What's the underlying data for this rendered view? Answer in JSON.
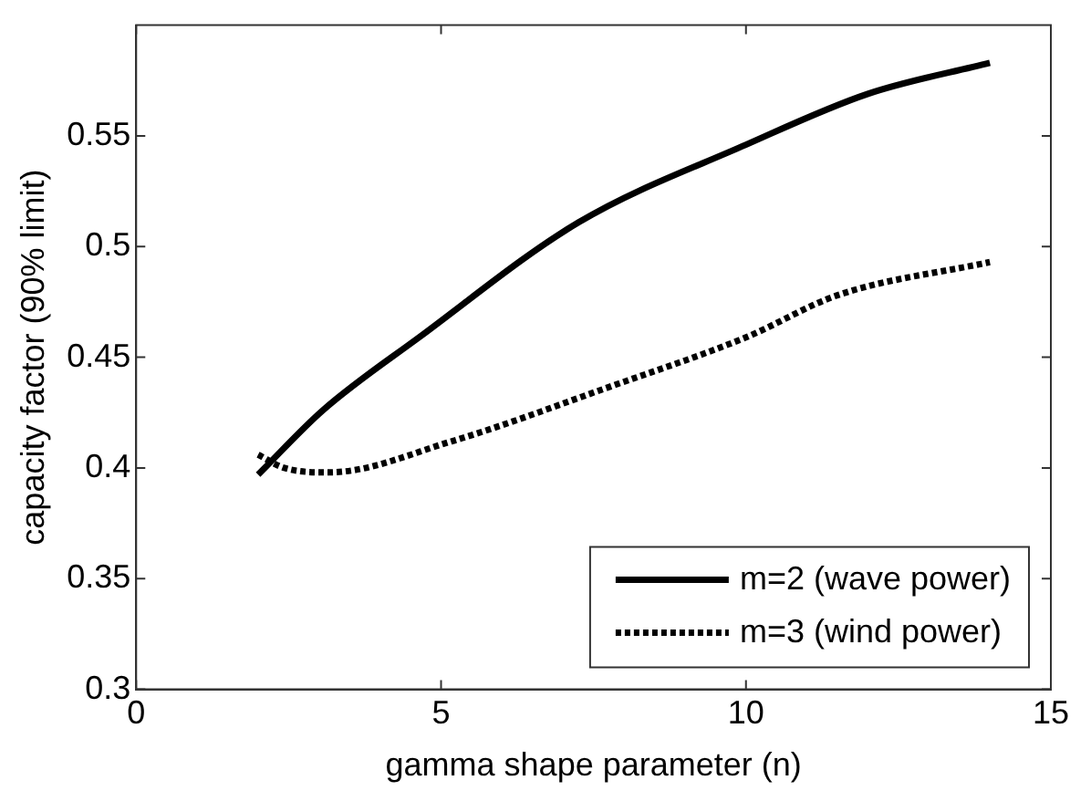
{
  "chart_data": {
    "type": "line",
    "xlabel": "gamma shape parameter (n)",
    "ylabel": "capacity factor (90% limit)",
    "xlim": [
      0,
      15
    ],
    "xticks": [
      0,
      5,
      10,
      15
    ],
    "ylim": [
      0.3,
      0.6
    ],
    "yticks": [
      0.3,
      0.35,
      0.4,
      0.45,
      0.5,
      0.55
    ],
    "grid": false,
    "legend": "bottom right",
    "series": [
      {
        "name": "m=2 (wave power)",
        "color": "#000000",
        "line_style": "solid",
        "x": [
          2,
          3.06,
          4.64,
          7.26,
          10,
          12,
          14
        ],
        "values": [
          0.397,
          0.426,
          0.459,
          0.511,
          0.546,
          0.569,
          0.583
        ]
      },
      {
        "name": "m=3 (wind power)",
        "color": "#000000",
        "line_style": "dotted",
        "x": [
          2,
          2.43,
          3.15,
          5.17,
          7.8,
          10,
          11.5,
          14
        ],
        "values": [
          0.406,
          0.4,
          0.398,
          0.412,
          0.437,
          0.459,
          0.478,
          0.493
        ]
      }
    ]
  }
}
